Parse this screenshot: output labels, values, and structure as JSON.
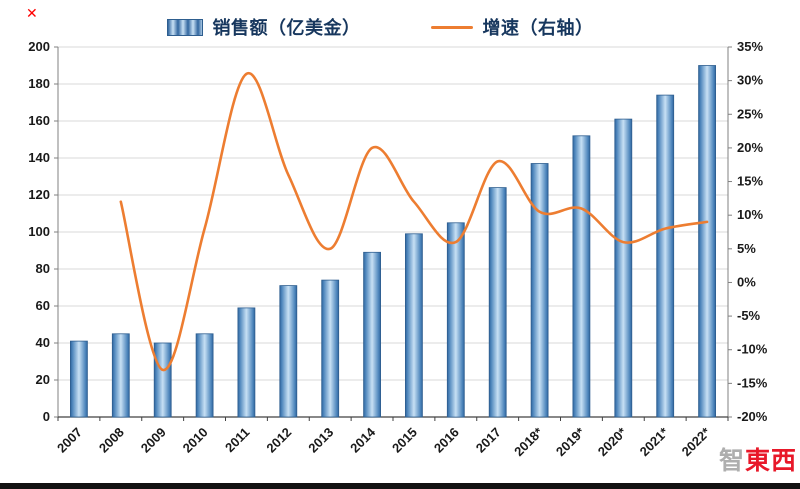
{
  "marker": {
    "glyph": "✕"
  },
  "legend": [
    {
      "label": "销售额（亿美金）",
      "type": "bar"
    },
    {
      "label": "增速（右轴）",
      "type": "line"
    }
  ],
  "watermark": {
    "part1": "智",
    "part2": "東西"
  },
  "colors": {
    "bar_fill_dark": "#30659E",
    "bar_fill_light": "#C7E0F4",
    "bar_stroke": "#2E5E8F",
    "line": "#ED7D31",
    "grid": "#D9D9D9",
    "axis": "#808080",
    "axis_bottom": "#404040",
    "text": "#1A1A1A",
    "legend_text": "#17375E",
    "watermark_grey": "#A6A6A6",
    "watermark_red": "#E60012"
  },
  "chart_data": {
    "type": "bar+line",
    "title": "",
    "categories": [
      "2007",
      "2008",
      "2009",
      "2010",
      "2011",
      "2012",
      "2013",
      "2014",
      "2015",
      "2016",
      "2017",
      "2018*",
      "2019*",
      "2020*",
      "2021*",
      "2022*"
    ],
    "series": [
      {
        "name": "销售额（亿美金）",
        "type": "bar",
        "axis": "left",
        "values": [
          41,
          45,
          40,
          45,
          59,
          71,
          74,
          89,
          99,
          105,
          124,
          137,
          152,
          161,
          174,
          190
        ]
      },
      {
        "name": "增速（右轴）",
        "type": "line",
        "axis": "right",
        "x_start_index": 1,
        "values": [
          12,
          -13,
          8,
          31,
          16,
          5,
          20,
          12,
          6,
          18,
          10.5,
          11,
          6,
          8,
          9
        ]
      }
    ],
    "left_axis": {
      "min": 0,
      "max": 200,
      "step": 20
    },
    "right_axis": {
      "min": -20,
      "max": 35,
      "step": 5,
      "suffix": "%"
    },
    "grid": true,
    "legend_position": "top",
    "x_labels_rotation": -45
  }
}
